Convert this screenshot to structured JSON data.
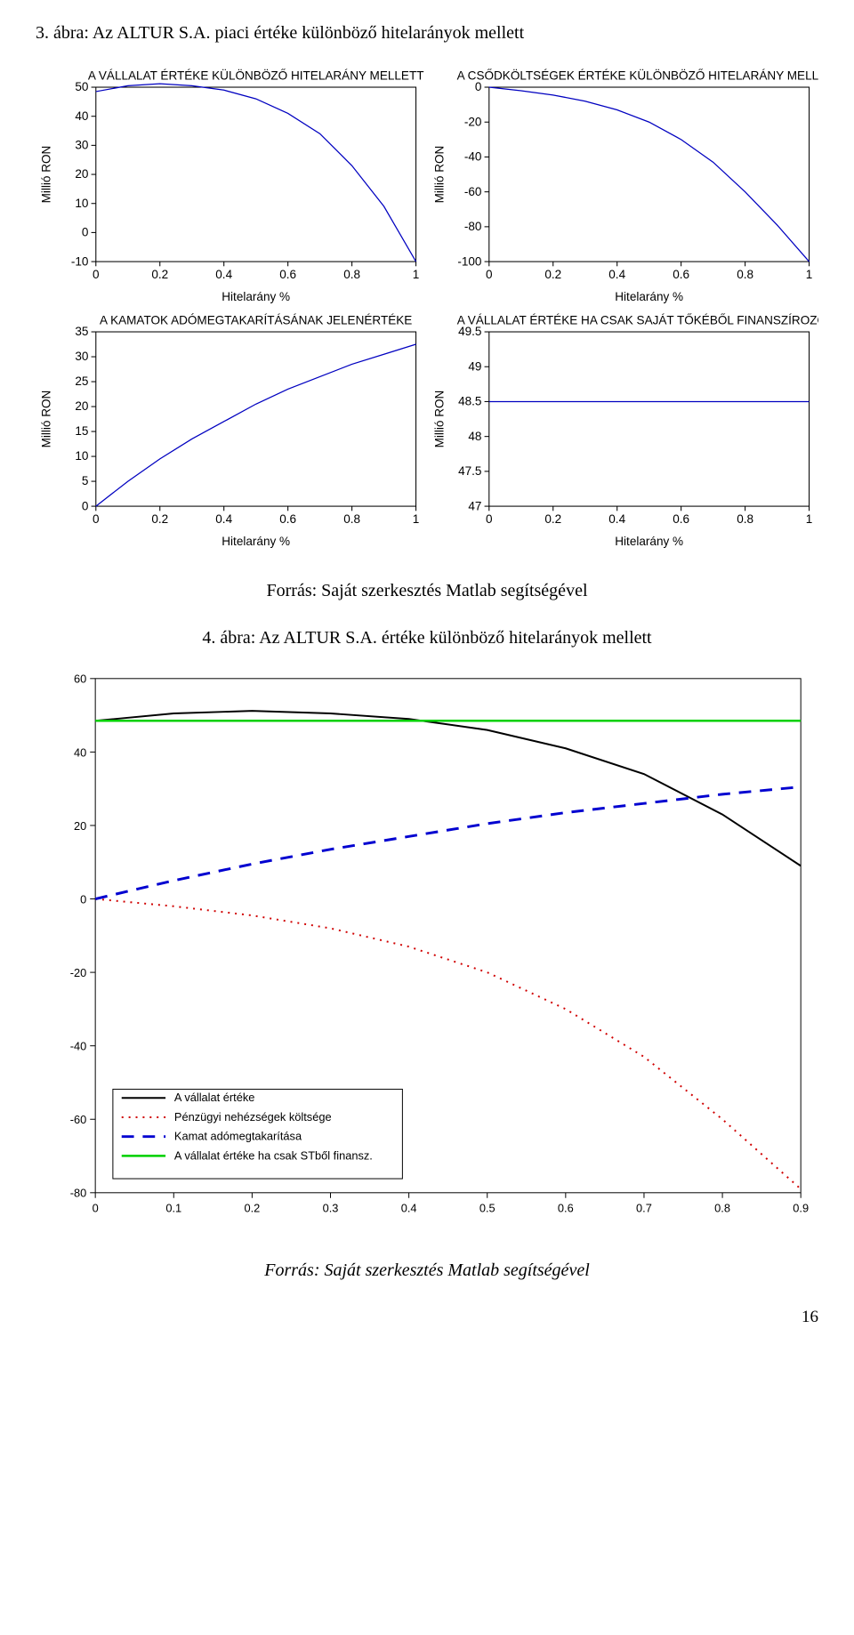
{
  "caption1": "3. ábra: Az ALTUR S.A. piaci értéke különböző hitelarányok mellett",
  "source1": "Forrás: Saját szerkesztés Matlab segítségével",
  "caption2": "4. ábra: Az ALTUR S.A. értéke különböző hitelarányok mellett",
  "source2": "Forrás: Saját szerkesztés Matlab segítségével",
  "pageNumber": "16",
  "smallChartCommon": {
    "xlabel": "Hitelarány %",
    "ylabel": "Millió RON",
    "xlim": [
      0,
      1
    ],
    "xticks": [
      0,
      0.2,
      0.4,
      0.6,
      0.8,
      1
    ],
    "xlabel_fontsize": 13,
    "ylabel_fontsize": 13,
    "tick_fontsize": 13,
    "line_color": "#0000c0",
    "line_width": 1.2,
    "background_color": "#ffffff",
    "axis_color": "#000000"
  },
  "chartA": {
    "title": "A VÁLLALAT ÉRTÉKE KÜLÖNBÖZŐ HITELARÁNY MELLETT",
    "ylim": [
      -10,
      50
    ],
    "yticks": [
      -10,
      0,
      10,
      20,
      30,
      40,
      50
    ],
    "x": [
      0,
      0.1,
      0.2,
      0.3,
      0.4,
      0.5,
      0.6,
      0.7,
      0.8,
      0.9,
      1.0
    ],
    "y": [
      48.5,
      50.5,
      51.2,
      50.5,
      49.0,
      46.0,
      41.0,
      34.0,
      23.0,
      9.0,
      -10.0
    ]
  },
  "chartB": {
    "title": "A CSŐDKÖLTSÉGEK ÉRTÉKE KÜLÖNBÖZŐ HITELARÁNY MELLETT",
    "ylim": [
      -100,
      0
    ],
    "yticks": [
      -100,
      -80,
      -60,
      -40,
      -20,
      0
    ],
    "x": [
      0,
      0.1,
      0.2,
      0.3,
      0.4,
      0.5,
      0.6,
      0.7,
      0.8,
      0.9,
      1.0
    ],
    "y": [
      0,
      -2,
      -4.5,
      -8,
      -13,
      -20,
      -30,
      -43,
      -60,
      -79,
      -100
    ]
  },
  "chartC": {
    "title": "A KAMATOK ADÓMEGTAKARÍTÁSÁNAK JELENÉRTÉKE",
    "ylim": [
      0,
      35
    ],
    "yticks": [
      0,
      5,
      10,
      15,
      20,
      25,
      30,
      35
    ],
    "x": [
      0,
      0.1,
      0.2,
      0.3,
      0.4,
      0.5,
      0.6,
      0.7,
      0.8,
      0.9,
      1.0
    ],
    "y": [
      0,
      5,
      9.5,
      13.5,
      17,
      20.5,
      23.5,
      26.0,
      28.5,
      30.5,
      32.5
    ]
  },
  "chartD": {
    "title": "A VÁLLALAT ÉRTÉKE HA CSAK SAJÁT TŐKÉBŐL FINANSZÍROZOTT",
    "ylim": [
      47,
      49.5
    ],
    "yticks": [
      47,
      47.5,
      48,
      48.5,
      49,
      49.5
    ],
    "x": [
      0,
      0.1,
      0.2,
      0.3,
      0.4,
      0.5,
      0.6,
      0.7,
      0.8,
      0.9,
      1.0
    ],
    "y": [
      48.5,
      48.5,
      48.5,
      48.5,
      48.5,
      48.5,
      48.5,
      48.5,
      48.5,
      48.5,
      48.5
    ]
  },
  "bigChart": {
    "xlim": [
      0,
      0.9
    ],
    "xticks": [
      0,
      0.1,
      0.2,
      0.3,
      0.4,
      0.5,
      0.6,
      0.7,
      0.8,
      0.9
    ],
    "ylim": [
      -80,
      60
    ],
    "yticks": [
      -80,
      -60,
      -40,
      -20,
      0,
      20,
      40,
      60
    ],
    "background_color": "#ffffff",
    "axis_color": "#000000",
    "tick_fontsize": 14,
    "legend_fontsize": 13,
    "legend_pos": "lower-left",
    "series": [
      {
        "name": "A vállalat értéke",
        "color": "#000000",
        "dash": "solid",
        "width": 2,
        "x": [
          0,
          0.1,
          0.2,
          0.3,
          0.4,
          0.5,
          0.6,
          0.7,
          0.8,
          0.9
        ],
        "y": [
          48.5,
          50.5,
          51.2,
          50.5,
          49.0,
          46.0,
          41.0,
          34.0,
          23.0,
          9.0
        ]
      },
      {
        "name": "Pénzügyi nehézségek költsége",
        "color": "#d00000",
        "dash": "dot",
        "width": 2,
        "x": [
          0,
          0.1,
          0.2,
          0.3,
          0.4,
          0.5,
          0.6,
          0.7,
          0.8,
          0.9
        ],
        "y": [
          0,
          -2,
          -4.5,
          -8,
          -13,
          -20,
          -30,
          -43,
          -60,
          -79
        ]
      },
      {
        "name": "Kamat adómegtakarítása",
        "color": "#0000d0",
        "dash": "dash",
        "width": 3,
        "x": [
          0,
          0.1,
          0.2,
          0.3,
          0.4,
          0.5,
          0.6,
          0.7,
          0.8,
          0.9
        ],
        "y": [
          0,
          5,
          9.5,
          13.5,
          17,
          20.5,
          23.5,
          26.0,
          28.5,
          30.5
        ]
      },
      {
        "name": "A vállalat értéke ha csak STből finansz.",
        "color": "#00d000",
        "dash": "solid",
        "width": 2.5,
        "x": [
          0,
          0.1,
          0.2,
          0.3,
          0.4,
          0.5,
          0.6,
          0.7,
          0.8,
          0.9
        ],
        "y": [
          48.5,
          48.5,
          48.5,
          48.5,
          48.5,
          48.5,
          48.5,
          48.5,
          48.5,
          48.5
        ]
      }
    ]
  }
}
